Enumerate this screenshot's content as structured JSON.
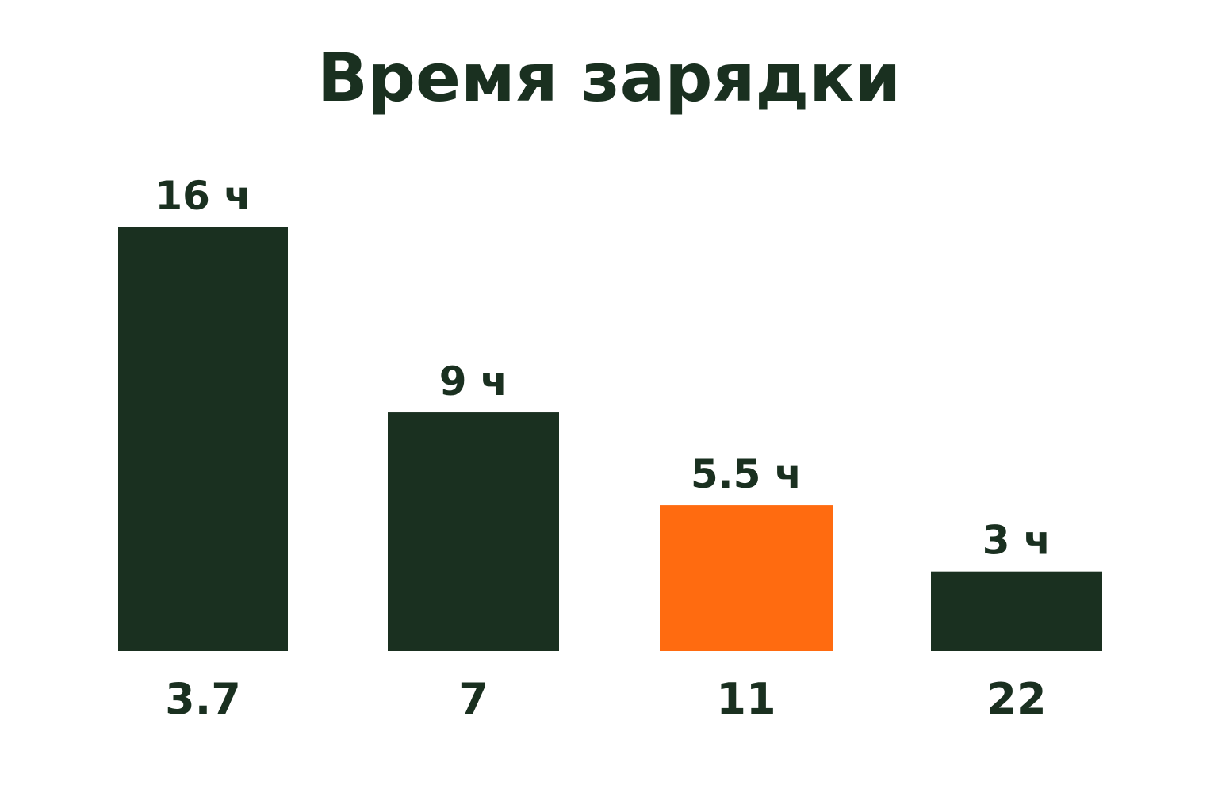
{
  "chart_data": {
    "type": "bar",
    "title": "Время зарядки",
    "categories": [
      "3.7",
      "7",
      "11",
      "22"
    ],
    "values": [
      16,
      9,
      5.5,
      3
    ],
    "value_labels": [
      "16 ч",
      "9 ч",
      "5.5 ч",
      "3 ч"
    ],
    "xlabel": "",
    "ylabel": "",
    "ylim": [
      0,
      16
    ],
    "grid": false,
    "highlight_index": 2,
    "colors": {
      "bar": "#1a3020",
      "highlight": "#ff6b10",
      "text": "#1a3020"
    }
  }
}
